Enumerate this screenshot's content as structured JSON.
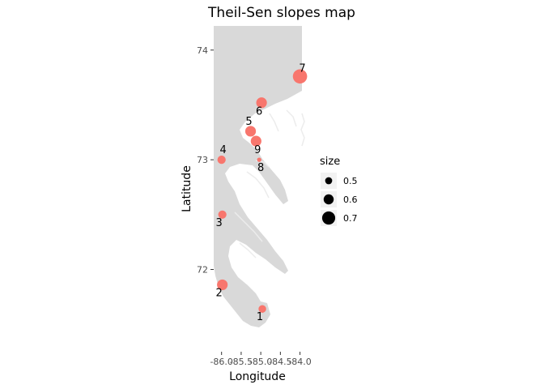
{
  "chart_data": {
    "type": "scatter",
    "title": "Theil-Sen slopes map",
    "xlabel": "Longitude",
    "ylabel": "Latitude",
    "xlim": [
      -86.2,
      -83.95
    ],
    "ylim": [
      71.25,
      74.22
    ],
    "x_ticks": [
      {
        "value": -86.0,
        "label": "-86.0"
      },
      {
        "value": -85.5,
        "label": "-85.5"
      },
      {
        "value": -85.0,
        "label": "-85.0"
      },
      {
        "value": -84.5,
        "label": "-84.5"
      },
      {
        "value": -84.0,
        "label": "-84.0"
      }
    ],
    "y_ticks": [
      {
        "value": 72,
        "label": "72"
      },
      {
        "value": 73,
        "label": "73"
      },
      {
        "value": 74,
        "label": "74"
      }
    ],
    "point_color": "#F8766D",
    "land_color": "#d9d9d9",
    "grid": false,
    "legend": {
      "title": "size",
      "position": "right",
      "entries": [
        {
          "value": 0.5,
          "label": "0.5"
        },
        {
          "value": 0.6,
          "label": "0.6"
        },
        {
          "value": 0.7,
          "label": "0.7"
        }
      ]
    },
    "size_range": [
      0.4,
      0.75
    ],
    "points": [
      {
        "label": "1",
        "lon": -84.96,
        "lat": 71.64,
        "size": 0.52
      },
      {
        "label": "2",
        "lon": -85.98,
        "lat": 71.86,
        "size": 0.62
      },
      {
        "label": "3",
        "lon": -85.98,
        "lat": 72.5,
        "size": 0.54
      },
      {
        "label": "4",
        "lon": -86.0,
        "lat": 73.0,
        "size": 0.54
      },
      {
        "label": "5",
        "lon": -85.26,
        "lat": 73.26,
        "size": 0.62
      },
      {
        "label": "6",
        "lon": -84.98,
        "lat": 73.52,
        "size": 0.62
      },
      {
        "label": "7",
        "lon": -84.0,
        "lat": 73.76,
        "size": 0.74
      },
      {
        "label": "8",
        "lon": -85.04,
        "lat": 73.0,
        "size": 0.41
      },
      {
        "label": "9",
        "lon": -85.12,
        "lat": 73.17,
        "size": 0.62
      }
    ]
  }
}
